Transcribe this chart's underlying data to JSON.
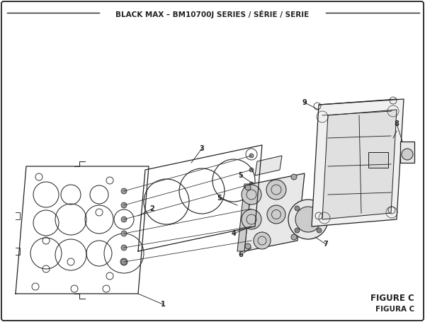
{
  "title": "BLACK MAX – BM10700J SERIES / SÉRIE / SERIE",
  "figure_label_1": "FIGURE C",
  "figure_label_2": "FIGURA C",
  "bg_color": "#ffffff",
  "border_color": "#222222",
  "line_color": "#222222",
  "gray_fill": "#e8e8e8",
  "mid_gray": "#cccccc",
  "dark_gray": "#aaaaaa"
}
